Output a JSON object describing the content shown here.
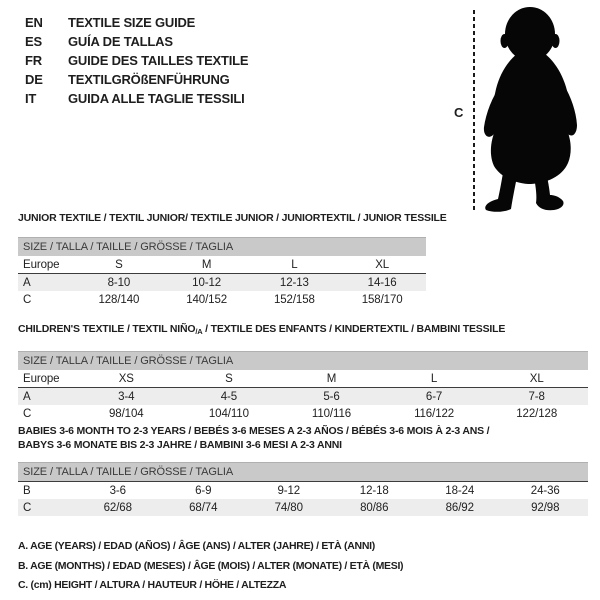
{
  "languages": [
    {
      "code": "EN",
      "title": "TEXTILE SIZE GUIDE"
    },
    {
      "code": "ES",
      "title": "GUÍA DE TALLAS"
    },
    {
      "code": "FR",
      "title": "GUIDE DES TAILLES TEXTILE"
    },
    {
      "code": "DE",
      "title": "TEXTILGRÖßENFÜHRUNG"
    },
    {
      "code": "IT",
      "title": "GUIDA ALLE TAGLIE TESSILI"
    }
  ],
  "figure": {
    "measure_label": "C",
    "silhouette": "baby-toddler-silhouette"
  },
  "tables": [
    {
      "title_segments": [
        {
          "text": "JUNIOR TEXTILE / TEXTIL JUNIOR/ TEXTILE JUNIOR / JUNIORTEXTIL / JUNIOR TESSILE"
        }
      ],
      "size_header": "SIZE / TALLA / TAILLE / GRÖSSE / TAGLIA",
      "divider_after_row": 0,
      "bar_divider": false,
      "rows": [
        {
          "label": "Europe",
          "values": [
            "S",
            "M",
            "L",
            "XL"
          ]
        },
        {
          "label": "A",
          "values": [
            "8-10",
            "10-12",
            "12-13",
            "14-16"
          ]
        },
        {
          "label": "C",
          "values": [
            "128/140",
            "140/152",
            "152/158",
            "158/170"
          ]
        }
      ]
    },
    {
      "title_segments": [
        {
          "text": "CHILDREN'S TEXTILE / TEXTIL NIÑO"
        },
        {
          "text": "/A",
          "sub": true
        },
        {
          "text": " / TEXTILE DES ENFANTS / KINDERTEXTIL / BAMBINI TESSILE"
        }
      ],
      "size_header": "SIZE / TALLA / TAILLE / GRÖSSE / TAGLIA",
      "divider_after_row": 0,
      "bar_divider": false,
      "rows": [
        {
          "label": "Europe",
          "values": [
            "XS",
            "S",
            "M",
            "L",
            "XL"
          ]
        },
        {
          "label": "A",
          "values": [
            "3-4",
            "4-5",
            "5-6",
            "6-7",
            "7-8"
          ]
        },
        {
          "label": "C",
          "values": [
            "98/104",
            "104/110",
            "110/116",
            "116/122",
            "122/128"
          ]
        }
      ]
    },
    {
      "title_segments": [
        {
          "text": "BABIES 3-6 MONTH TO 2-3 YEARS / BEBÉS 3-6 MESES A 2-3 AÑOS / BÉBÉS 3-6 MOIS À 2-3 ANS /"
        },
        {
          "text": "BABYS 3-6 MONATE BIS 2-3 JAHRE / BAMBINI 3-6 MESI A 2-3 ANNI",
          "newline": true
        }
      ],
      "size_header": "SIZE / TALLA / TAILLE / GRÖSSE / TAGLIA",
      "divider_after_row": null,
      "bar_divider": true,
      "rows": [
        {
          "label": "B",
          "values": [
            "3-6",
            "6-9",
            "9-12",
            "12-18",
            "18-24",
            "24-36"
          ]
        },
        {
          "label": "C",
          "values": [
            "62/68",
            "68/74",
            "74/80",
            "80/86",
            "86/92",
            "92/98"
          ]
        }
      ]
    }
  ],
  "footnotes": [
    "A. AGE (YEARS) / EDAD (AÑOS) / ÂGE (ANS) / ALTER (JAHRE) / ETÀ (ANNI)",
    "B. AGE (MONTHS) / EDAD (MESES) / ÂGE (MOIS) / ALTER (MONATE) / ETÀ (MESI)",
    "C. (cm) HEIGHT / ALTURA / HAUTEUR / HÖHE / ALTEZZA"
  ],
  "colors": {
    "background": "#ffffff",
    "size_bar_gray": "#c9c9c9",
    "row_shaded_gray": "#ededed",
    "divider_dark": "#3c3c3c",
    "text": "#1e1e1e"
  }
}
